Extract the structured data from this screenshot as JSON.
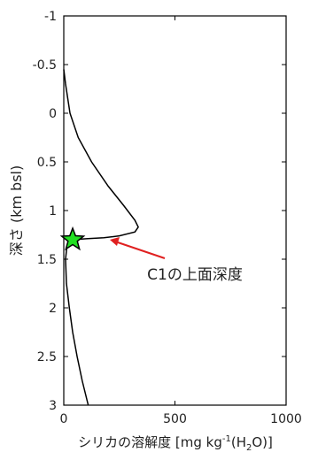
{
  "chart_data": {
    "type": "line",
    "ylabel": "深さ (km bsl)",
    "xlabel": [
      "シリカの溶解度 [mg kg",
      "-1",
      "(H",
      "2",
      "O)]"
    ],
    "annotation": {
      "text": "C1の上面深度",
      "color": "#e02020"
    },
    "xlim": [
      0,
      1000
    ],
    "xticks": [
      0,
      500,
      1000
    ],
    "ylim": [
      -1,
      3
    ],
    "yticks": [
      -1,
      -0.5,
      0,
      0.5,
      1,
      1.5,
      2,
      2.5,
      3
    ],
    "y_inverted": true,
    "color": "#000000",
    "x": [
      0,
      8,
      28,
      65,
      125,
      200,
      270,
      320,
      335,
      320,
      250,
      180,
      100,
      40,
      15,
      8,
      12,
      25,
      40,
      60,
      83,
      110
    ],
    "y": [
      -0.45,
      -0.3,
      0,
      0.25,
      0.5,
      0.75,
      0.95,
      1.1,
      1.17,
      1.22,
      1.26,
      1.28,
      1.29,
      1.3,
      1.35,
      1.5,
      1.75,
      2,
      2.25,
      2.5,
      2.75,
      3
    ],
    "marker": {
      "x": 40,
      "y": 1.3,
      "color": "#22e022"
    }
  }
}
